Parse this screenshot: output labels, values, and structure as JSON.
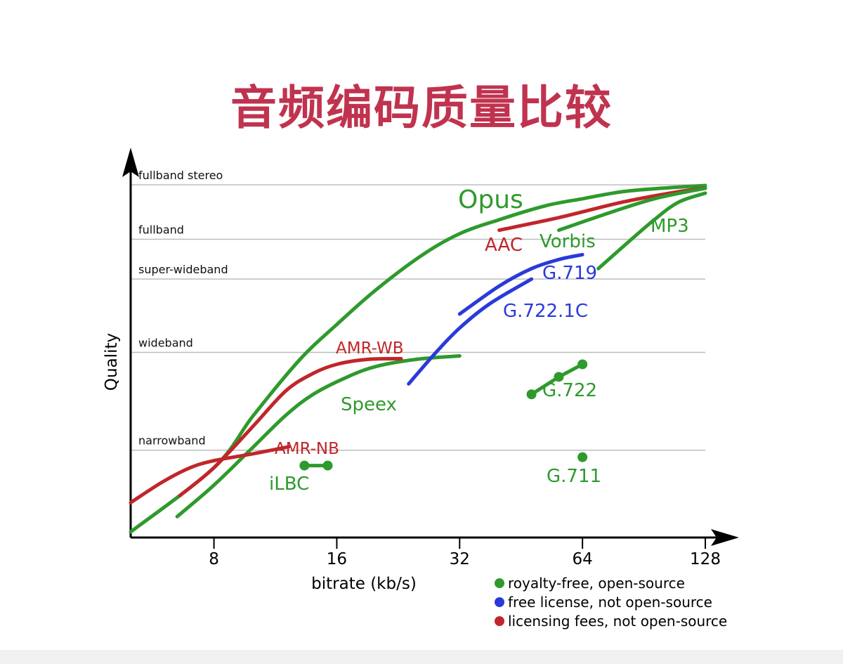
{
  "title": "音频编码质量比较",
  "colors": {
    "title": "#c0334f",
    "royalty_free": "#2e9a2c",
    "free_license": "#2a3ad8",
    "licensing_fees": "#c0262a",
    "axis": "#000000",
    "grid": "#bdbdbd"
  },
  "chart_data": {
    "type": "line",
    "title": "",
    "xlabel": "bitrate (kb/s)",
    "ylabel": "Quality",
    "x_scale": "log2",
    "xlim": [
      5,
      128
    ],
    "x_ticks": [
      8,
      16,
      32,
      64,
      128
    ],
    "ylim": [
      0,
      5.1
    ],
    "y_levels": [
      {
        "name": "narrowband",
        "value": 1.25
      },
      {
        "name": "wideband",
        "value": 2.65
      },
      {
        "name": "super-wideband",
        "value": 3.7
      },
      {
        "name": "fullband",
        "value": 4.27
      },
      {
        "name": "fullband stereo",
        "value": 5.05
      }
    ],
    "grid": true,
    "legend_position": "bottom-right",
    "legend": [
      {
        "label": "royalty-free, open-source",
        "category": "royalty_free"
      },
      {
        "label": "free license, not open-source",
        "category": "free_license"
      },
      {
        "label": "licensing fees, not open-source",
        "category": "licensing_fees"
      }
    ],
    "series": [
      {
        "name": "Opus",
        "category": "royalty_free",
        "points": [
          [
            5,
            0.08
          ],
          [
            8,
            1.0
          ],
          [
            10,
            1.75
          ],
          [
            13,
            2.55
          ],
          [
            16,
            3.05
          ],
          [
            20,
            3.55
          ],
          [
            26,
            4.05
          ],
          [
            32,
            4.35
          ],
          [
            40,
            4.55
          ],
          [
            52,
            4.75
          ],
          [
            64,
            4.85
          ],
          [
            80,
            4.95
          ],
          [
            100,
            5.0
          ],
          [
            128,
            5.04
          ]
        ]
      },
      {
        "name": "Speex",
        "category": "royalty_free",
        "points": [
          [
            6.5,
            0.3
          ],
          [
            8,
            0.75
          ],
          [
            10,
            1.3
          ],
          [
            12,
            1.75
          ],
          [
            14,
            2.05
          ],
          [
            17,
            2.3
          ],
          [
            20,
            2.45
          ],
          [
            25,
            2.55
          ],
          [
            32,
            2.6
          ]
        ]
      },
      {
        "name": "AMR-NB",
        "category": "licensing_fees",
        "points": [
          [
            5,
            0.5
          ],
          [
            6,
            0.8
          ],
          [
            7,
            1.0
          ],
          [
            8,
            1.1
          ],
          [
            10,
            1.2
          ],
          [
            12.2,
            1.3
          ]
        ]
      },
      {
        "name": "AMR-WB",
        "category": "licensing_fees",
        "points": [
          [
            6.6,
            0.6
          ],
          [
            8,
            1.0
          ],
          [
            10,
            1.6
          ],
          [
            12,
            2.1
          ],
          [
            14,
            2.35
          ],
          [
            16,
            2.48
          ],
          [
            19,
            2.55
          ],
          [
            23,
            2.56
          ]
        ]
      },
      {
        "name": "G.722.1C",
        "category": "free_license",
        "points": [
          [
            24,
            2.2
          ],
          [
            28,
            2.65
          ],
          [
            32,
            3.0
          ],
          [
            38,
            3.35
          ],
          [
            48,
            3.7
          ]
        ]
      },
      {
        "name": "G.719",
        "category": "free_license",
        "points": [
          [
            32,
            3.2
          ],
          [
            40,
            3.6
          ],
          [
            48,
            3.85
          ],
          [
            56,
            3.98
          ],
          [
            64,
            4.05
          ]
        ]
      },
      {
        "name": "AAC",
        "category": "licensing_fees",
        "points": [
          [
            40,
            4.4
          ],
          [
            56,
            4.58
          ],
          [
            80,
            4.8
          ],
          [
            110,
            4.95
          ],
          [
            128,
            5.0
          ]
        ]
      },
      {
        "name": "Vorbis",
        "category": "royalty_free",
        "points": [
          [
            56,
            4.4
          ],
          [
            72,
            4.62
          ],
          [
            96,
            4.85
          ],
          [
            128,
            5.0
          ]
        ]
      },
      {
        "name": "MP3",
        "category": "royalty_free",
        "points": [
          [
            70,
            3.85
          ],
          [
            80,
            4.15
          ],
          [
            96,
            4.55
          ],
          [
            110,
            4.8
          ],
          [
            128,
            4.93
          ]
        ]
      }
    ],
    "point_series": [
      {
        "name": "iLBC",
        "category": "royalty_free",
        "points": [
          [
            13.33,
            1.03
          ],
          [
            15.2,
            1.03
          ]
        ]
      },
      {
        "name": "G.722",
        "category": "royalty_free",
        "points": [
          [
            48,
            2.05
          ],
          [
            56,
            2.3
          ],
          [
            64,
            2.48
          ]
        ]
      },
      {
        "name": "G.711",
        "category": "royalty_free",
        "points": [
          [
            64,
            1.15
          ]
        ]
      }
    ]
  }
}
